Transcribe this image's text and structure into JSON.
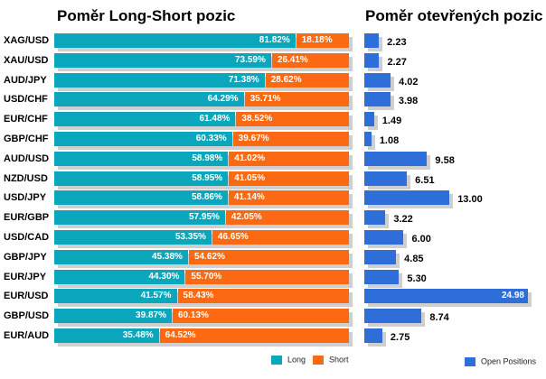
{
  "titles": {
    "left": "Poměr Long-Short pozic",
    "right": "Poměr otevřených pozic"
  },
  "colors": {
    "long": "#0aa6bb",
    "short": "#fb6a12",
    "open_positions": "#2e6ed9",
    "shadow": "#cfcfcf"
  },
  "legend": {
    "long": "Long",
    "short": "Short",
    "open_positions": "Open Positions"
  },
  "chart_data": [
    {
      "type": "bar",
      "orientation": "horizontal",
      "stacked": true,
      "title": "Poměr Long-Short pozic",
      "categories": [
        "XAG/USD",
        "XAU/USD",
        "AUD/JPY",
        "USD/CHF",
        "EUR/CHF",
        "GBP/CHF",
        "AUD/USD",
        "NZD/USD",
        "USD/JPY",
        "EUR/GBP",
        "USD/CAD",
        "GBP/JPY",
        "EUR/JPY",
        "EUR/USD",
        "GBP/USD",
        "EUR/AUD"
      ],
      "series": [
        {
          "name": "Long",
          "values": [
            81.82,
            73.59,
            71.38,
            64.29,
            61.48,
            60.33,
            58.98,
            58.95,
            58.86,
            57.95,
            53.35,
            45.38,
            44.3,
            41.57,
            39.87,
            35.48
          ],
          "labels": [
            "81.82%",
            "73.59%",
            "71.38%",
            "64.29%",
            "61.48%",
            "60.33%",
            "58.98%",
            "58.95%",
            "58.86%",
            "57.95%",
            "53.35%",
            "45.38%",
            "44.30%",
            "41.57%",
            "39.87%",
            "35.48%"
          ]
        },
        {
          "name": "Short",
          "values": [
            18.18,
            26.41,
            28.62,
            35.71,
            38.52,
            39.67,
            41.02,
            41.05,
            41.14,
            42.05,
            46.65,
            54.62,
            55.7,
            58.43,
            60.13,
            64.52
          ],
          "labels": [
            "18.18%",
            "26.41%",
            "28.62%",
            "35.71%",
            "38.52%",
            "39.67%",
            "41.02%",
            "41.05%",
            "41.14%",
            "42.05%",
            "46.65%",
            "54.62%",
            "55.70%",
            "58.43%",
            "60.13%",
            "64.52%"
          ]
        }
      ],
      "xlim": [
        0,
        100
      ],
      "legend_position": "bottom-right"
    },
    {
      "type": "bar",
      "orientation": "horizontal",
      "title": "Poměr otevřených pozic",
      "categories": [
        "XAG/USD",
        "XAU/USD",
        "AUD/JPY",
        "USD/CHF",
        "EUR/CHF",
        "GBP/CHF",
        "AUD/USD",
        "NZD/USD",
        "USD/JPY",
        "EUR/GBP",
        "USD/CAD",
        "GBP/JPY",
        "EUR/JPY",
        "EUR/USD",
        "GBP/USD",
        "EUR/AUD"
      ],
      "series": [
        {
          "name": "Open Positions",
          "values": [
            2.23,
            2.27,
            4.02,
            3.98,
            1.49,
            1.08,
            9.58,
            6.51,
            13.0,
            3.22,
            6.0,
            4.85,
            5.3,
            24.98,
            8.74,
            2.75
          ],
          "labels": [
            "2.23",
            "2.27",
            "4.02",
            "3.98",
            "1.49",
            "1.08",
            "9.58",
            "6.51",
            "13.00",
            "3.22",
            "6.00",
            "4.85",
            "5.30",
            "24.98",
            "8.74",
            "2.75"
          ]
        }
      ],
      "xlim": [
        0,
        24.98
      ],
      "legend_position": "bottom-right"
    }
  ]
}
